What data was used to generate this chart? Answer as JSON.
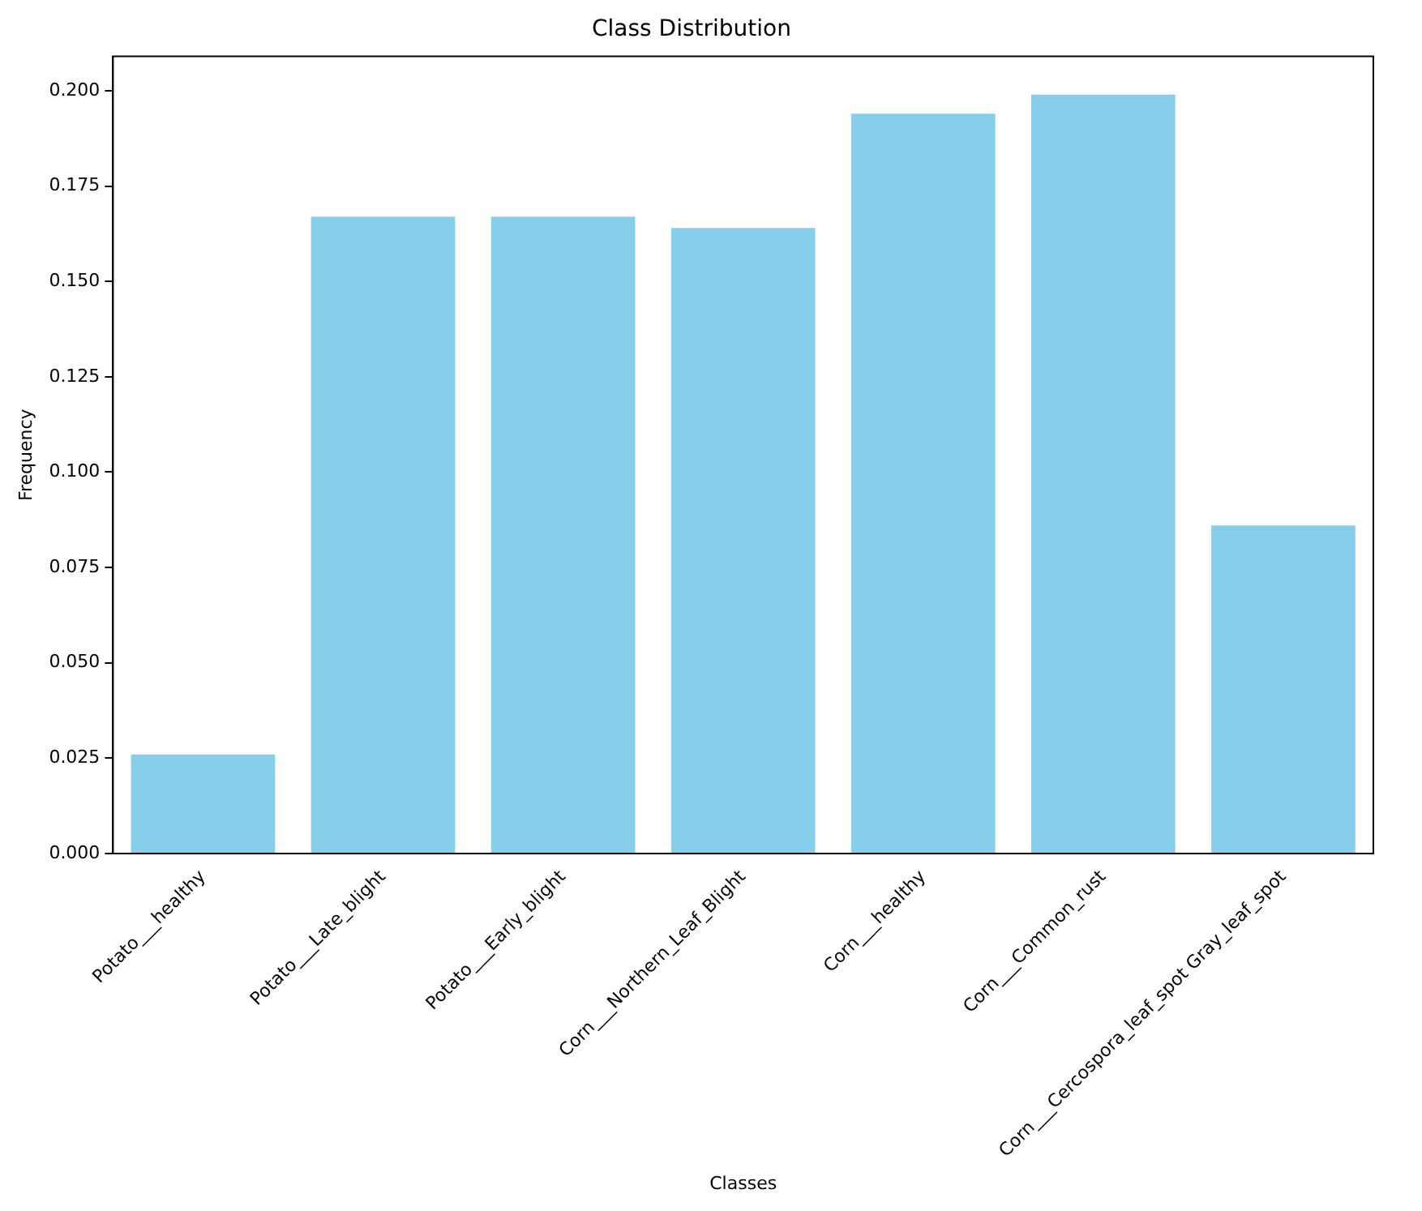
{
  "chart_data": {
    "type": "bar",
    "title": "Class Distribution",
    "xlabel": "Classes",
    "ylabel": "Frequency",
    "categories": [
      "Potato___healthy",
      "Potato___Late_blight",
      "Potato___Early_blight",
      "Corn___Northern_Leaf_Blight",
      "Corn___healthy",
      "Corn___Common_rust",
      "Corn___Cercospora_leaf_spot Gray_leaf_spot"
    ],
    "values": [
      0.026,
      0.167,
      0.167,
      0.164,
      0.194,
      0.199,
      0.086
    ],
    "color": "#87ceeb",
    "ylim": [
      0,
      0.209
    ],
    "yticks": [
      {
        "value": 0,
        "label": "0.000"
      },
      {
        "value": 0.025,
        "label": "0.025"
      },
      {
        "value": 0.05,
        "label": "0.050"
      },
      {
        "value": 0.075,
        "label": "0.075"
      },
      {
        "value": 0.1,
        "label": "0.100"
      },
      {
        "value": 0.125,
        "label": "0.125"
      },
      {
        "value": 0.15,
        "label": "0.150"
      },
      {
        "value": 0.175,
        "label": "0.175"
      },
      {
        "value": 0.2,
        "label": "0.200"
      }
    ],
    "grid": false,
    "legend": false
  }
}
